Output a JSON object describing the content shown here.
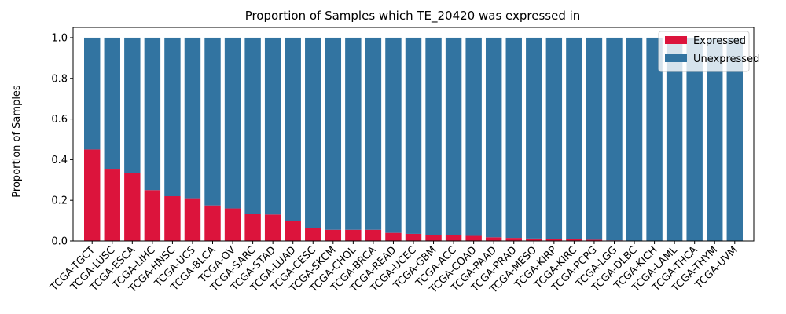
{
  "chart_data": {
    "type": "bar",
    "stacked": true,
    "title": "Proportion of Samples which TE_20420 was expressed in",
    "xlabel": "",
    "ylabel": "Proportion of Samples",
    "ylim": [
      0,
      1.05
    ],
    "yticks": [
      "0.0",
      "0.2",
      "0.4",
      "0.6",
      "0.8",
      "1.0"
    ],
    "grid": false,
    "legend_position": "top-right",
    "categories": [
      "TCGA-TGCT",
      "TCGA-LUSC",
      "TCGA-ESCA",
      "TCGA-LIHC",
      "TCGA-HNSC",
      "TCGA-UCS",
      "TCGA-BLCA",
      "TCGA-OV",
      "TCGA-SARC",
      "TCGA-STAD",
      "TCGA-LUAD",
      "TCGA-CESC",
      "TCGA-SKCM",
      "TCGA-CHOL",
      "TCGA-BRCA",
      "TCGA-READ",
      "TCGA-UCEC",
      "TCGA-GBM",
      "TCGA-ACC",
      "TCGA-COAD",
      "TCGA-PAAD",
      "TCGA-PRAD",
      "TCGA-MESO",
      "TCGA-KIRP",
      "TCGA-KIRC",
      "TCGA-PCPG",
      "TCGA-LGG",
      "TCGA-DLBC",
      "TCGA-KICH",
      "TCGA-LAML",
      "TCGA-THCA",
      "TCGA-THYM",
      "TCGA-UVM"
    ],
    "series": [
      {
        "name": "Expressed",
        "color": "#dc143c",
        "values": [
          0.45,
          0.355,
          0.335,
          0.25,
          0.22,
          0.21,
          0.175,
          0.16,
          0.135,
          0.13,
          0.1,
          0.065,
          0.055,
          0.055,
          0.055,
          0.04,
          0.035,
          0.03,
          0.028,
          0.025,
          0.018,
          0.015,
          0.012,
          0.01,
          0.008,
          0.006,
          0.003,
          0,
          0,
          0,
          0,
          0,
          0
        ]
      },
      {
        "name": "Unexpressed",
        "color": "#3274a1",
        "values": [
          0.55,
          0.645,
          0.665,
          0.75,
          0.78,
          0.79,
          0.825,
          0.84,
          0.865,
          0.87,
          0.9,
          0.935,
          0.945,
          0.945,
          0.945,
          0.96,
          0.965,
          0.97,
          0.972,
          0.975,
          0.982,
          0.985,
          0.988,
          0.99,
          0.992,
          0.994,
          0.997,
          1,
          1,
          1,
          1,
          1,
          1
        ]
      }
    ]
  }
}
